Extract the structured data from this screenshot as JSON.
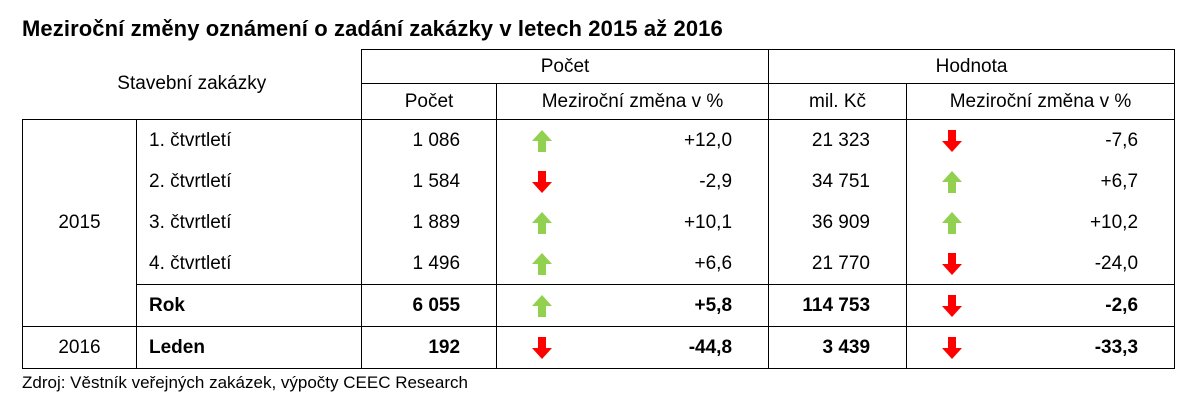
{
  "title": "Meziroční změny oznámení o zadání zakázky v letech 2015 až 2016",
  "source": "Zdroj: Věstník veřejných zakázek, výpočty CEEC Research",
  "colors": {
    "up": "#92d050",
    "down": "#ff0000"
  },
  "chart_data": {
    "type": "table",
    "title": "Meziroční změny oznámení o zadání zakázky v letech 2015 až 2016",
    "header": {
      "row_header": "Stavební zakázky",
      "group_count": "Počet",
      "group_value": "Hodnota",
      "sub_count": "Počet",
      "sub_count_change": "Meziroční změna v %",
      "sub_value": "mil. Kč",
      "sub_value_change": "Meziroční změna v %"
    },
    "years": [
      {
        "label": "2015",
        "rows": 5
      },
      {
        "label": "2016",
        "rows": 1
      }
    ],
    "rows": [
      {
        "period": "1. čtvrtletí",
        "count": "1 086",
        "count_trend": "up",
        "count_change": "+12,0",
        "value": "21 323",
        "value_trend": "down",
        "value_change": "-7,6",
        "bold": false
      },
      {
        "period": "2. čtvrtletí",
        "count": "1 584",
        "count_trend": "down",
        "count_change": "-2,9",
        "value": "34 751",
        "value_trend": "up",
        "value_change": "+6,7",
        "bold": false
      },
      {
        "period": "3. čtvrtletí",
        "count": "1 889",
        "count_trend": "up",
        "count_change": "+10,1",
        "value": "36 909",
        "value_trend": "up",
        "value_change": "+10,2",
        "bold": false
      },
      {
        "period": "4. čtvrtletí",
        "count": "1 496",
        "count_trend": "up",
        "count_change": "+6,6",
        "value": "21 770",
        "value_trend": "down",
        "value_change": "-24,0",
        "bold": false
      },
      {
        "period": "Rok",
        "count": "6 055",
        "count_trend": "up",
        "count_change": "+5,8",
        "value": "114 753",
        "value_trend": "down",
        "value_change": "-2,6",
        "bold": true
      },
      {
        "period": "Leden",
        "count": "192",
        "count_trend": "down",
        "count_change": "-44,8",
        "value": "3 439",
        "value_trend": "down",
        "value_change": "-33,3",
        "bold": true
      }
    ]
  }
}
